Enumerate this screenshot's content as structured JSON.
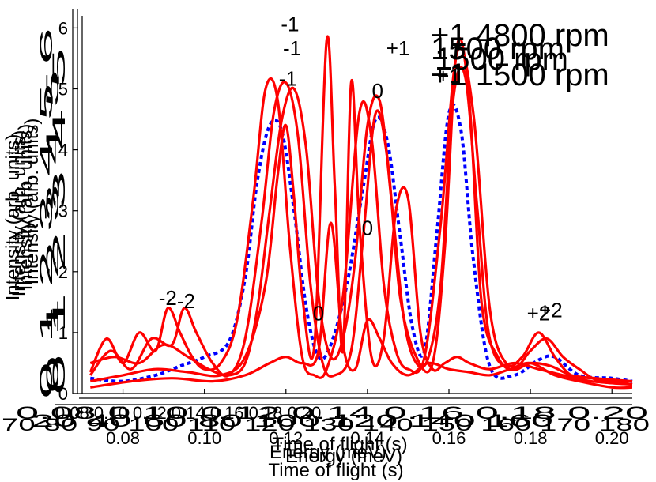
{
  "chart_data": {
    "type": "line",
    "xlabel": "Time of flight (s)",
    "ylabel": "Intensity (arb. units)",
    "xlim": [
      0.07,
      0.205
    ],
    "ylim": [
      0,
      6.2
    ],
    "x_ticks": [
      "0.08",
      "0.10",
      "0.12",
      "0.14",
      "0.16",
      "0.18",
      "0.20"
    ],
    "y_ticks": [
      "0",
      "1",
      "2",
      "3",
      "4",
      "5",
      "6"
    ],
    "overlay_texts": {
      "x_titles": [
        "Energy (meV)",
        "Energy (meV)",
        "Time of flight (s)"
      ],
      "y_titles": [
        "Intensity (arb. units)",
        "Intensity (arb. units)",
        "Intensity (arb. units)"
      ],
      "x_tick_rows": [
        "0.08 0.10 0.12 0.14 0.16 0.18 0.20",
        "70 80 90 100 110 120 130 140 150 160 170 180",
        "0.08 0.10 0.12 0.14 0.16 0.18 0.20",
        "20 40 60 80 100 120 140 160"
      ],
      "y_tick_rows": [
        "0 1 2 3 4 5 6",
        "0 1 2 3 4 5",
        "0 1 2 3 4 5"
      ]
    },
    "order_labels": [
      {
        "text": "-2",
        "x": 0.091,
        "y": 1.45
      },
      {
        "text": "-2",
        "x": 0.0955,
        "y": 1.4
      },
      {
        "text": "-1",
        "x": 0.121,
        "y": 5.95
      },
      {
        "text": "-1",
        "x": 0.1215,
        "y": 5.55
      },
      {
        "text": "-1",
        "x": 0.1205,
        "y": 5.05
      },
      {
        "text": "0",
        "x": 0.1425,
        "y": 4.85
      },
      {
        "text": "0",
        "x": 0.14,
        "y": 2.6
      },
      {
        "text": "0",
        "x": 0.128,
        "y": 1.2
      },
      {
        "text": "+1",
        "x": 0.1475,
        "y": 5.55
      },
      {
        "text": "+1",
        "x": 0.16,
        "y": 5.1
      },
      {
        "text": "+2",
        "x": 0.182,
        "y": 1.2
      },
      {
        "text": "+2",
        "x": 0.185,
        "y": 1.25
      }
    ],
    "legend": [
      "+1 4800 rpm",
      "1500 rpm",
      "1500 rpm",
      "+1 1500 rpm"
    ],
    "series": [
      {
        "style": "dotted",
        "color": "#0000ff",
        "x": [
          0.072,
          0.08,
          0.088,
          0.094,
          0.1,
          0.106,
          0.11,
          0.113,
          0.116,
          0.119,
          0.122,
          0.125,
          0.128,
          0.131,
          0.135,
          0.139,
          0.142,
          0.145,
          0.148,
          0.151,
          0.154,
          0.157,
          0.16,
          0.163,
          0.166,
          0.17,
          0.176,
          0.182,
          0.186,
          0.192,
          0.2,
          0.205
        ],
        "y": [
          0.25,
          0.2,
          0.3,
          0.45,
          0.6,
          0.85,
          1.9,
          3.5,
          4.4,
          4.3,
          3.0,
          1.4,
          0.6,
          0.8,
          1.8,
          3.4,
          4.5,
          4.1,
          2.6,
          1.1,
          0.7,
          2.6,
          4.6,
          4.3,
          2.2,
          0.45,
          0.3,
          0.55,
          0.6,
          0.3,
          0.25,
          0.2
        ]
      },
      {
        "style": "solid",
        "color": "#ff0000",
        "x": [
          0.072,
          0.076,
          0.08,
          0.084,
          0.088,
          0.091,
          0.094,
          0.097,
          0.1,
          0.104,
          0.108,
          0.112,
          0.115,
          0.118,
          0.121,
          0.124,
          0.127,
          0.13,
          0.134,
          0.138,
          0.141,
          0.144,
          0.147,
          0.15,
          0.154,
          0.158,
          0.162,
          0.166,
          0.17,
          0.174,
          0.178,
          0.182,
          0.186,
          0.19,
          0.195,
          0.2,
          0.205
        ],
        "y": [
          0.35,
          0.9,
          0.5,
          1.0,
          0.7,
          1.4,
          1.0,
          0.6,
          0.4,
          0.5,
          1.2,
          3.2,
          5.0,
          4.8,
          2.4,
          0.6,
          0.3,
          0.4,
          1.6,
          4.6,
          4.2,
          1.8,
          0.7,
          0.4,
          0.6,
          2.8,
          5.6,
          4.6,
          1.4,
          0.5,
          0.6,
          1.0,
          0.6,
          0.3,
          0.25,
          0.2,
          0.15
        ]
      },
      {
        "style": "solid",
        "color": "#ff0000",
        "x": [
          0.072,
          0.077,
          0.082,
          0.087,
          0.092,
          0.095,
          0.098,
          0.102,
          0.106,
          0.11,
          0.114,
          0.117,
          0.12,
          0.123,
          0.126,
          0.129,
          0.132,
          0.136,
          0.139,
          0.142,
          0.145,
          0.148,
          0.152,
          0.156,
          0.159,
          0.162,
          0.165,
          0.168,
          0.172,
          0.176,
          0.18,
          0.184,
          0.188,
          0.192,
          0.197,
          0.205
        ],
        "y": [
          0.3,
          0.7,
          0.4,
          0.9,
          0.8,
          1.4,
          1.0,
          0.5,
          0.3,
          0.9,
          2.8,
          4.6,
          5.1,
          4.2,
          1.8,
          0.5,
          0.3,
          0.7,
          2.6,
          4.6,
          3.8,
          1.6,
          0.6,
          0.5,
          2.4,
          5.7,
          4.8,
          1.5,
          0.6,
          0.4,
          0.7,
          0.9,
          0.6,
          0.4,
          0.2,
          0.15
        ]
      },
      {
        "style": "solid",
        "color": "#ff0000",
        "x": [
          0.072,
          0.078,
          0.084,
          0.09,
          0.096,
          0.101,
          0.106,
          0.11,
          0.113,
          0.116,
          0.119,
          0.122,
          0.125,
          0.128,
          0.131,
          0.134,
          0.137,
          0.14,
          0.143,
          0.146,
          0.149,
          0.152,
          0.155,
          0.158,
          0.161,
          0.164,
          0.167,
          0.17,
          0.175,
          0.18,
          0.185,
          0.19,
          0.196,
          0.205
        ],
        "y": [
          0.5,
          0.6,
          0.5,
          0.8,
          0.6,
          0.4,
          0.3,
          0.5,
          1.4,
          3.0,
          4.5,
          5.0,
          4.0,
          1.6,
          0.6,
          0.9,
          2.2,
          4.4,
          4.8,
          3.1,
          1.2,
          0.5,
          0.6,
          1.8,
          4.8,
          5.2,
          3.0,
          0.9,
          0.4,
          0.5,
          0.45,
          0.3,
          0.25,
          0.2
        ]
      },
      {
        "style": "solid",
        "color": "#ff0000",
        "x": [
          0.072,
          0.08,
          0.088,
          0.096,
          0.104,
          0.11,
          0.115,
          0.118,
          0.12,
          0.122,
          0.124,
          0.127,
          0.13,
          0.132,
          0.134,
          0.136,
          0.138,
          0.141,
          0.144,
          0.147,
          0.15,
          0.153,
          0.156,
          0.159,
          0.162,
          0.165,
          0.17,
          0.176,
          0.182,
          0.188,
          0.195,
          0.205
        ],
        "y": [
          0.2,
          0.3,
          0.4,
          0.35,
          0.3,
          0.6,
          1.8,
          3.6,
          4.4,
          3.2,
          1.6,
          0.8,
          5.8,
          3.4,
          0.7,
          5.1,
          2.8,
          0.6,
          0.9,
          3.0,
          3.2,
          1.0,
          0.4,
          0.5,
          0.6,
          0.5,
          0.4,
          0.5,
          0.4,
          0.3,
          0.2,
          0.15
        ]
      },
      {
        "style": "solid",
        "color": "#ff0000",
        "x": [
          0.072,
          0.082,
          0.092,
          0.102,
          0.11,
          0.116,
          0.12,
          0.124,
          0.128,
          0.131,
          0.134,
          0.137,
          0.14,
          0.143,
          0.146,
          0.15,
          0.155,
          0.16,
          0.165,
          0.17,
          0.175,
          0.18,
          0.186,
          0.192,
          0.2,
          0.205
        ],
        "y": [
          0.1,
          0.2,
          0.25,
          0.2,
          0.3,
          0.5,
          0.6,
          0.5,
          0.7,
          2.8,
          0.8,
          0.4,
          1.2,
          0.9,
          0.5,
          0.3,
          0.5,
          0.4,
          0.35,
          0.3,
          0.4,
          0.5,
          0.3,
          0.2,
          0.1,
          0.1
        ]
      }
    ]
  }
}
